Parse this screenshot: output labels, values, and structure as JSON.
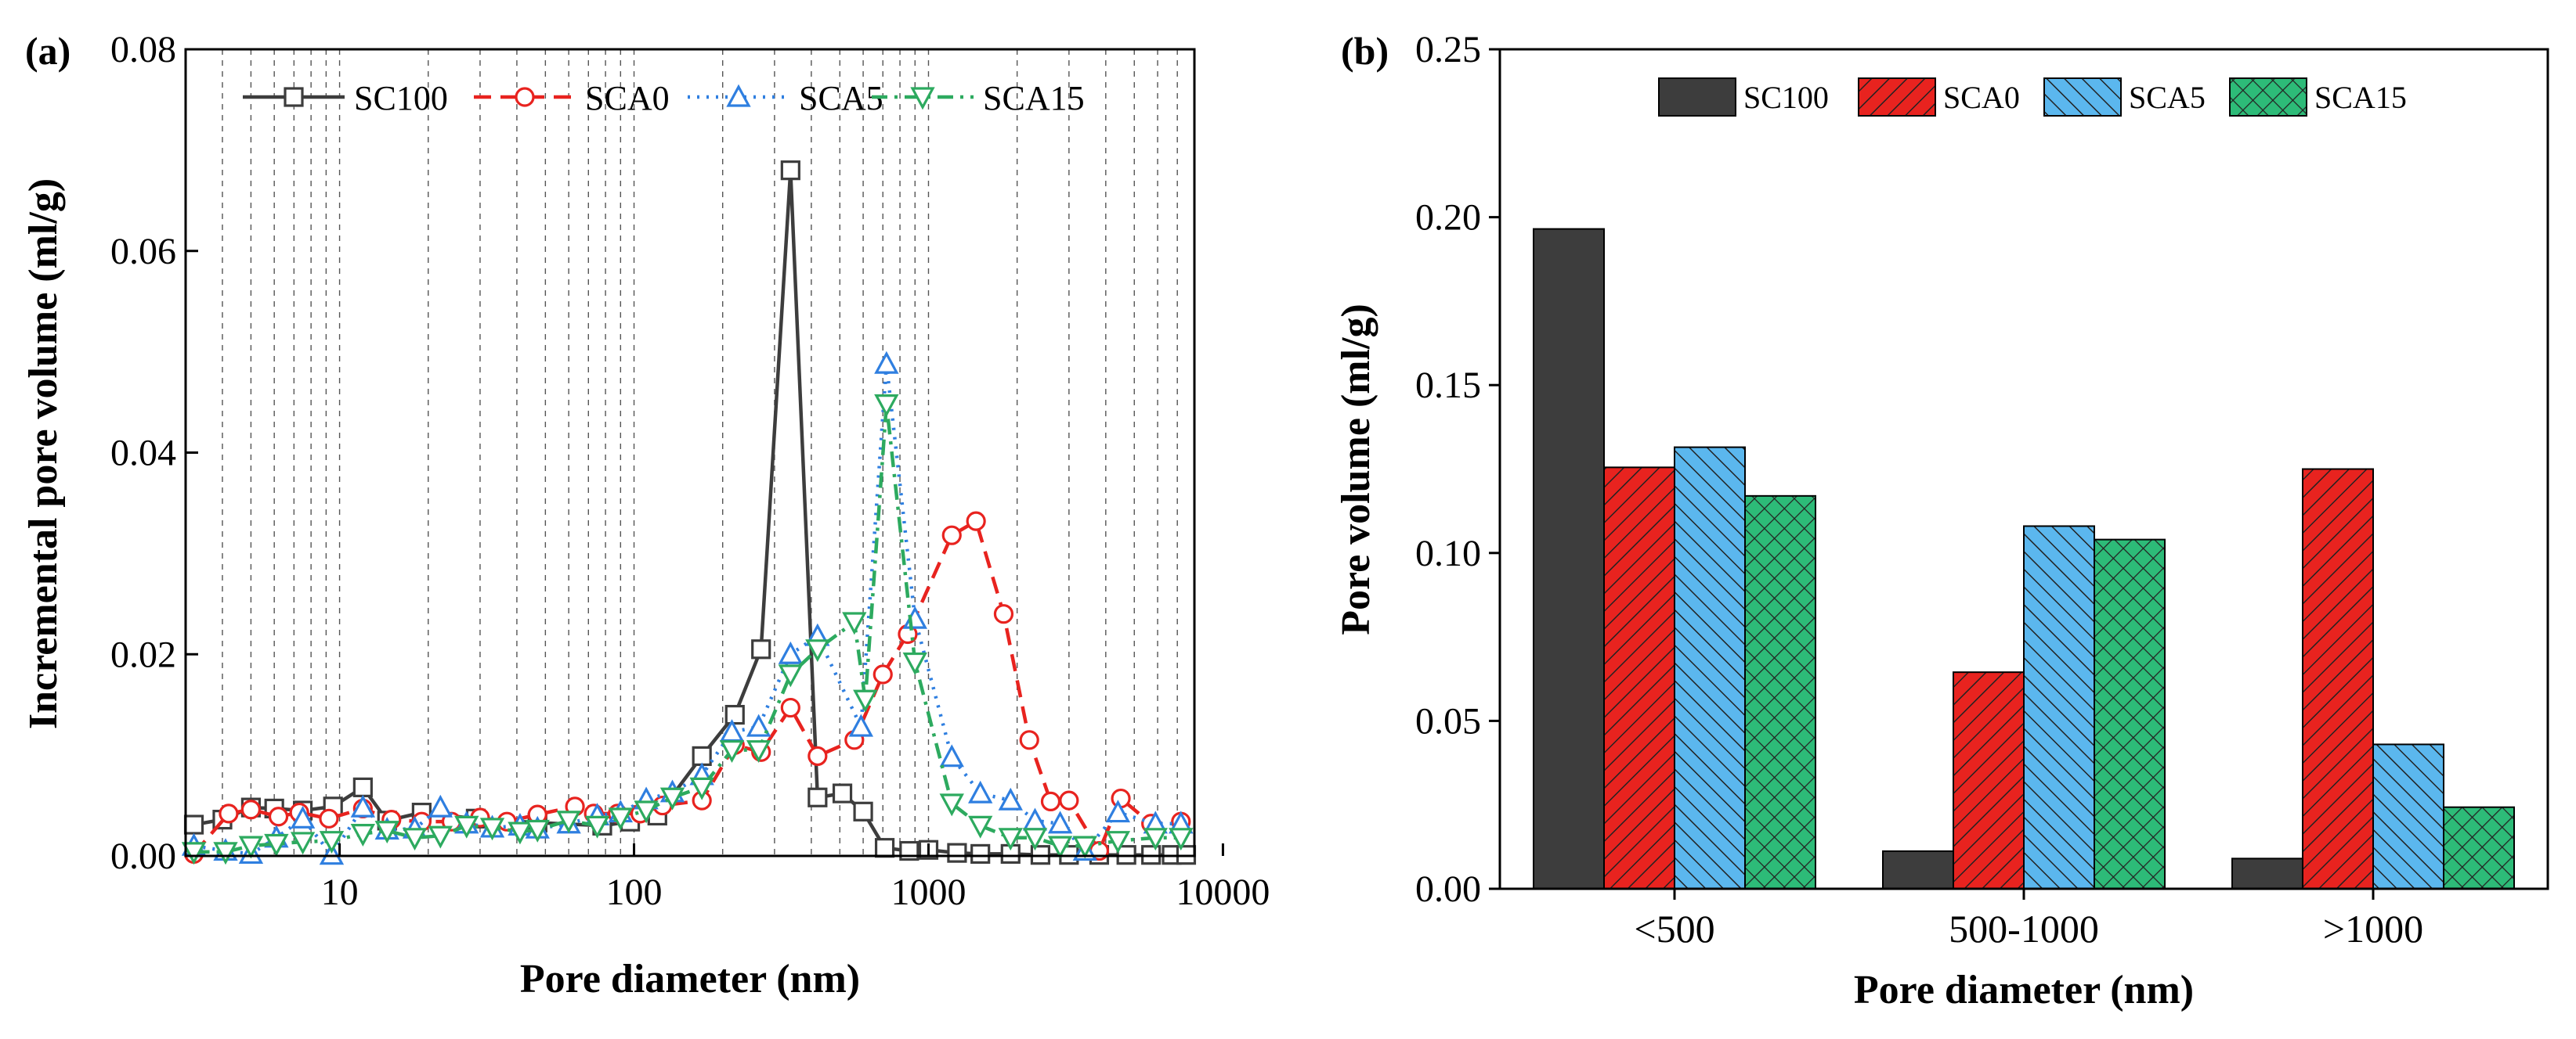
{
  "colors": {
    "SC100": "#3d3d3d",
    "SCA0": "#e8231f",
    "SCA5": "#2f7fe0",
    "SCA15": "#2daa5f",
    "SCA5_fill": "#5bb7ee",
    "SCA15_fill": "#2dbb78"
  },
  "chart_data": [
    {
      "panel_label": "(a)",
      "type": "line",
      "xscale": "log",
      "xlabel": "Pore diameter (nm)",
      "ylabel": "Incremental pore volume (ml/g)",
      "xlim": [
        3,
        8000
      ],
      "ylim": [
        0,
        0.08
      ],
      "xticks": [
        10,
        100,
        1000,
        10000
      ],
      "xtick_labels": [
        "10",
        "100",
        "1000",
        "10000"
      ],
      "yticks": [
        0,
        0.02,
        0.04,
        0.06,
        0.08
      ],
      "ytick_labels": [
        "0.00",
        "0.02",
        "0.04",
        "0.06",
        "0.08"
      ],
      "grid": "vertical dashed lines at log-minor ticks",
      "legend": "top",
      "series": [
        {
          "name": "SC100",
          "marker": "square",
          "line": "solid",
          "x": [
            3.2,
            4,
            5,
            6,
            7.5,
            9.5,
            12,
            14.5,
            19,
            29,
            47,
            78,
            97,
            120,
            170,
            220,
            270,
            340,
            420,
            510,
            600,
            710,
            860,
            1000,
            1250,
            1500,
            1900,
            2400,
            3000,
            3800,
            4700,
            5700,
            6700,
            7500
          ],
          "y": [
            0.0031,
            0.0036,
            0.0048,
            0.0047,
            0.0045,
            0.0049,
            0.0068,
            0.0035,
            0.0043,
            0.0037,
            0.0033,
            0.003,
            0.0034,
            0.004,
            0.0099,
            0.014,
            0.0205,
            0.068,
            0.0058,
            0.0062,
            0.0044,
            0.0008,
            0.0005,
            0.0006,
            0.0003,
            0.0002,
            0.0002,
            0.0001,
            0.0001,
            0.0001,
            0.0001,
            0.0001,
            0.0001,
            0.0001
          ]
        },
        {
          "name": "SCA0",
          "marker": "circle",
          "line": "dashed",
          "x": [
            3.2,
            4.2,
            5,
            6.2,
            7.3,
            9.2,
            12,
            15,
            19,
            24,
            30,
            37,
            47,
            63,
            73,
            88,
            105,
            125,
            170,
            220,
            270,
            340,
            420,
            560,
            700,
            850,
            1200,
            1450,
            1800,
            2200,
            2600,
            3000,
            3800,
            4500,
            5700,
            7200
          ],
          "y": [
            0.0002,
            0.0042,
            0.0046,
            0.0039,
            0.0043,
            0.0037,
            0.0047,
            0.0036,
            0.0034,
            0.0034,
            0.0038,
            0.0034,
            0.0041,
            0.0049,
            0.0042,
            0.0042,
            0.0042,
            0.005,
            0.0055,
            0.011,
            0.0103,
            0.0147,
            0.0099,
            0.0115,
            0.018,
            0.022,
            0.0318,
            0.0332,
            0.024,
            0.0115,
            0.0054,
            0.0055,
            0.0005,
            0.0057,
            0.0032,
            0.0034
          ]
        },
        {
          "name": "SCA5",
          "marker": "triangle-up",
          "line": "dotted",
          "x": [
            3.2,
            4.1,
            5,
            6.1,
            7.5,
            9.4,
            12,
            14.5,
            18,
            22,
            27,
            33,
            41,
            47,
            60,
            75,
            90,
            110,
            135,
            170,
            215,
            265,
            340,
            420,
            590,
            720,
            900,
            1200,
            1500,
            1900,
            2300,
            2800,
            3400,
            4400,
            5900,
            7200
          ],
          "y": [
            0.001,
            0.0005,
            0.0002,
            0.0018,
            0.0037,
            0.0001,
            0.0048,
            0.0026,
            0.0027,
            0.0048,
            0.0032,
            0.0028,
            0.003,
            0.0027,
            0.0032,
            0.004,
            0.0043,
            0.0056,
            0.0063,
            0.008,
            0.0123,
            0.0128,
            0.02,
            0.0218,
            0.0128,
            0.0488,
            0.0235,
            0.0098,
            0.0062,
            0.0055,
            0.0035,
            0.0032,
            0.0005,
            0.0043,
            0.0032,
            0.0032
          ]
        },
        {
          "name": "SCA15",
          "marker": "triangle-down",
          "line": "dash-dot",
          "x": [
            3.2,
            4.1,
            5,
            6.1,
            7.5,
            9.4,
            12,
            14.5,
            18,
            22,
            27,
            33,
            41,
            47,
            60,
            75,
            90,
            110,
            135,
            170,
            215,
            265,
            340,
            420,
            560,
            610,
            720,
            900,
            1200,
            1500,
            1900,
            2300,
            2800,
            3400,
            4400,
            5900,
            7200
          ],
          "y": [
            0.0004,
            0.0004,
            0.001,
            0.0012,
            0.0014,
            0.0015,
            0.0022,
            0.0025,
            0.0018,
            0.002,
            0.003,
            0.0028,
            0.0024,
            0.0026,
            0.0035,
            0.003,
            0.0038,
            0.0045,
            0.0058,
            0.0068,
            0.0105,
            0.0105,
            0.018,
            0.0205,
            0.0232,
            0.0155,
            0.0448,
            0.0192,
            0.0052,
            0.003,
            0.0018,
            0.0018,
            0.001,
            0.001,
            0.0015,
            0.0018,
            0.0018
          ]
        }
      ]
    },
    {
      "panel_label": "(b)",
      "type": "bar",
      "xlabel": "Pore diameter (nm)",
      "ylabel": "Pore volume (ml/g)",
      "ylim": [
        0,
        0.25
      ],
      "yticks": [
        0,
        0.05,
        0.1,
        0.15,
        0.2,
        0.25
      ],
      "ytick_labels": [
        "0.00",
        "0.05",
        "0.10",
        "0.15",
        "0.20",
        "0.25"
      ],
      "categories": [
        "<500",
        "500-1000",
        ">1000"
      ],
      "legend": "top",
      "series": [
        {
          "name": "SC100",
          "pattern": "solid",
          "values": [
            0.1965,
            0.0112,
            0.009
          ]
        },
        {
          "name": "SCA0",
          "pattern": "hatch-forward",
          "values": [
            0.1255,
            0.0645,
            0.125
          ]
        },
        {
          "name": "SCA5",
          "pattern": "hatch-back",
          "values": [
            0.1315,
            0.108,
            0.043
          ]
        },
        {
          "name": "SCA15",
          "pattern": "crosshatch",
          "values": [
            0.117,
            0.104,
            0.0243
          ]
        }
      ]
    }
  ]
}
